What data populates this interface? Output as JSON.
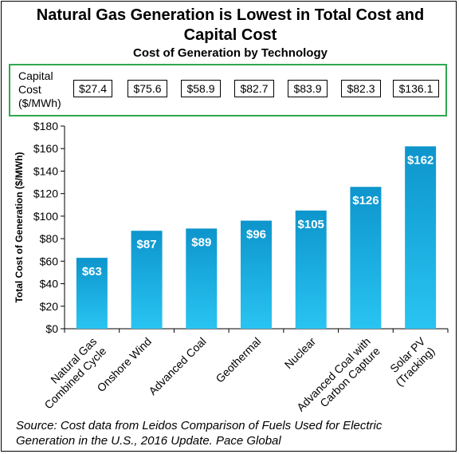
{
  "header": {
    "title_line1": "Natural Gas Generation is Lowest in Total Cost and",
    "title_line2": "Capital Cost",
    "subtitle": "Cost of Generation by Technology"
  },
  "capital_cost": {
    "label_lines": [
      "Capital",
      "Cost",
      "($/MWh)"
    ],
    "values": [
      "$27.4",
      "$75.6",
      "$58.9",
      "$82.7",
      "$83.9",
      "$82.3",
      "$136.1"
    ]
  },
  "chart_data": {
    "type": "bar",
    "title": "Cost of Generation by Technology",
    "categories": [
      [
        "Natural Gas",
        "Combined Cycle"
      ],
      [
        "Onshore Wind"
      ],
      [
        "Advanced Coal"
      ],
      [
        "Geothermal"
      ],
      [
        "Nuclear"
      ],
      [
        "Advanced Coal with",
        "Carbon Capture"
      ],
      [
        "Solar PV",
        "(Tracking)"
      ]
    ],
    "values": [
      63,
      87,
      89,
      96,
      105,
      126,
      162
    ],
    "data_labels": [
      "$63",
      "$87",
      "$89",
      "$96",
      "$105",
      "$126",
      "$162"
    ],
    "ylabel": "Total Cost of Generation ($/MWh)",
    "xlabel": "",
    "ylim": [
      0,
      180
    ],
    "ytick_step": 20,
    "ytick_prefix": "$",
    "grid": false,
    "colors": {
      "bar_top": "#0d95cc",
      "bar_bottom": "#29c4f2",
      "label": "#ffffff"
    }
  },
  "source": {
    "line1": "Source: Cost data from Leidos Comparison of Fuels Used for Electric",
    "line2": "Generation in the U.S., 2016 Update. Pace Global"
  },
  "colors": {
    "capital_box_border": "#2fa84f"
  }
}
